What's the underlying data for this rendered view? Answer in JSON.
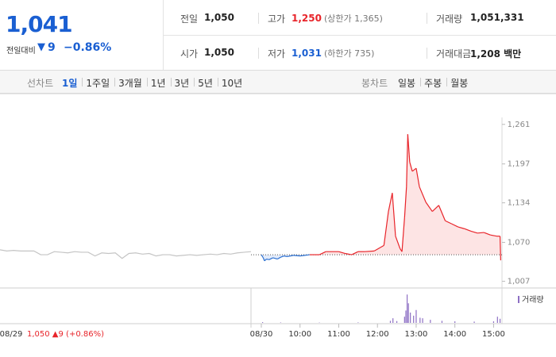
{
  "summary": {
    "price": "1,041",
    "change_label": "전일대비",
    "change_arrow": "▼",
    "change": "9",
    "change_rate": "−0.86%"
  },
  "stats": [
    [
      {
        "label": "전일",
        "value": "1,050"
      },
      {
        "label": "고가",
        "value": "1,250",
        "note": "(상한가 1,365)"
      },
      {
        "label": "거래량",
        "value": "1,051,331"
      }
    ],
    [
      {
        "label": "시가",
        "value": "1,050"
      },
      {
        "label": "저가",
        "value": "1,031",
        "note": "(하한가 735)"
      },
      {
        "label": "거래대금",
        "value": "1,208 백만"
      }
    ]
  ],
  "tabs": {
    "line_label": "선차트",
    "line": [
      "1일",
      "1주일",
      "3개월",
      "1년",
      "3년",
      "5년",
      "10년"
    ],
    "candle_label": "봉차트",
    "candle": [
      "일봉",
      "주봉",
      "월봉"
    ]
  },
  "chart_data": {
    "type": "line",
    "prev_close": 1050,
    "previous_day": {
      "label": "08/29",
      "caption": "1,050 ▲9 (+0.86%)",
      "color": "#c4c4c4",
      "values": [
        1058,
        1056,
        1057,
        1056,
        1056,
        1056,
        1050,
        1050,
        1055,
        1054,
        1053,
        1055,
        1054,
        1054,
        1048,
        1053,
        1052,
        1053,
        1044,
        1052,
        1053,
        1051,
        1052,
        1048,
        1050,
        1050,
        1048,
        1049,
        1050,
        1049,
        1050,
        1051,
        1050,
        1052,
        1051,
        1053,
        1054,
        1055
      ]
    },
    "series": [
      {
        "name": "today",
        "up_color": "#e8242a",
        "down_color": "#2a6fd1",
        "x": [
          0,
          3,
          5,
          8,
          12,
          18,
          25,
          30,
          35,
          40,
          50,
          60,
          75,
          90,
          100,
          120,
          130,
          140,
          150,
          160,
          175,
          190,
          197,
          200,
          203,
          208,
          215,
          218,
          222,
          225,
          227,
          230,
          234,
          240,
          245,
          255,
          265,
          275,
          285,
          295,
          305,
          315,
          325,
          335,
          345,
          355,
          365,
          370,
          371
        ],
        "values": [
          1050,
          1045,
          1040,
          1043,
          1042,
          1045,
          1043,
          1046,
          1048,
          1047,
          1049,
          1048,
          1050,
          1050,
          1055,
          1055,
          1052,
          1050,
          1055,
          1055,
          1056,
          1065,
          1120,
          1135,
          1150,
          1080,
          1060,
          1055,
          1110,
          1160,
          1245,
          1200,
          1185,
          1190,
          1160,
          1135,
          1120,
          1130,
          1105,
          1100,
          1095,
          1092,
          1088,
          1085,
          1086,
          1082,
          1080,
          1080,
          1041
        ]
      }
    ],
    "xlim": [
      -16,
      373
    ],
    "xticks": [
      {
        "value": 0,
        "label": "08/30"
      },
      {
        "value": 60,
        "label": "10:00"
      },
      {
        "value": 120,
        "label": "11:00"
      },
      {
        "value": 180,
        "label": "12:00"
      },
      {
        "value": 240,
        "label": "13:00"
      },
      {
        "value": 300,
        "label": "14:00"
      },
      {
        "value": 360,
        "label": "15:00"
      }
    ],
    "ylim": [
      1000,
      1280
    ],
    "yticks": [
      {
        "value": 1007,
        "label": "1,007"
      },
      {
        "value": 1070,
        "label": "1,070"
      },
      {
        "value": 1134,
        "label": "1,134"
      },
      {
        "value": 1197,
        "label": "1,197"
      },
      {
        "value": 1261,
        "label": "1,261"
      }
    ],
    "volume": {
      "label": "거래량",
      "color": "#8d6fc4",
      "ylim": [
        0,
        60000
      ],
      "x": [
        2,
        30,
        90,
        150,
        200,
        204,
        210,
        222,
        224,
        226,
        228,
        231,
        236,
        240,
        246,
        250,
        262,
        280,
        300,
        330,
        360,
        366,
        370
      ],
      "values": [
        1500,
        800,
        600,
        900,
        4000,
        9000,
        3500,
        12000,
        24000,
        55000,
        38000,
        20000,
        14000,
        25000,
        10000,
        9000,
        6000,
        4000,
        3000,
        2500,
        3000,
        12000,
        8000
      ]
    }
  }
}
